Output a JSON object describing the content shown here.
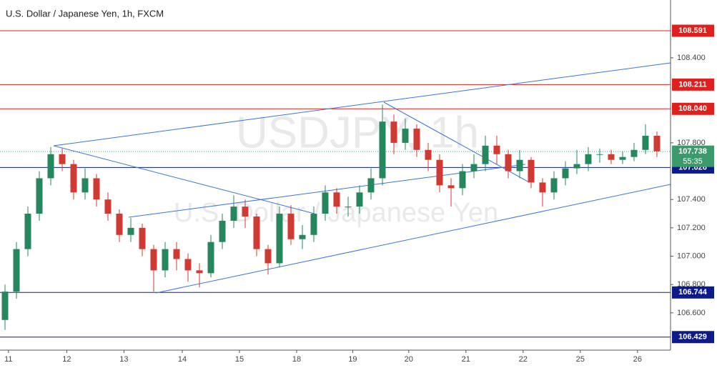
{
  "chart_data": {
    "type": "candlestick",
    "title": "U.S. Dollar / Japanese Yen, 1h, FXCM",
    "watermark": [
      "USDJPY, 1h",
      "U.S. Dollar / Japanese Yen"
    ],
    "open": [
      106.55,
      106.75,
      107.05,
      107.3,
      107.55,
      107.72,
      107.65,
      107.45,
      107.55,
      107.4,
      107.3,
      107.15,
      107.2,
      107.05,
      106.9,
      107.05,
      106.98,
      106.9,
      106.88,
      107.1,
      107.25,
      107.35,
      107.28,
      107.05,
      106.95,
      107.3,
      107.12,
      107.15,
      107.3,
      107.45,
      107.35,
      107.35,
      107.45,
      107.55,
      107.95,
      107.8,
      107.9,
      107.75,
      107.68,
      107.5,
      107.48,
      107.6,
      107.65,
      107.78,
      107.72,
      107.6,
      107.68,
      107.52,
      107.45,
      107.55,
      107.62,
      107.65,
      107.72,
      107.72,
      107.68,
      107.7,
      107.75,
      107.85
    ],
    "high": [
      106.8,
      107.1,
      107.35,
      107.6,
      107.77,
      107.76,
      107.68,
      107.62,
      107.58,
      107.45,
      107.33,
      107.27,
      107.23,
      107.08,
      107.1,
      107.1,
      107.02,
      106.95,
      107.15,
      107.3,
      107.43,
      107.4,
      107.3,
      107.08,
      107.35,
      107.36,
      107.22,
      107.35,
      107.5,
      107.48,
      107.42,
      107.5,
      107.62,
      108.07,
      108.0,
      107.97,
      107.93,
      107.8,
      107.72,
      107.55,
      107.65,
      107.72,
      107.85,
      107.85,
      107.75,
      107.75,
      107.7,
      107.55,
      107.6,
      107.67,
      107.75,
      107.77,
      107.76,
      107.75,
      107.74,
      107.8,
      107.93,
      107.88
    ],
    "low": [
      106.48,
      106.7,
      107.0,
      107.25,
      107.5,
      107.6,
      107.4,
      107.4,
      107.35,
      107.25,
      107.1,
      107.1,
      107.0,
      106.75,
      106.85,
      106.9,
      106.82,
      106.78,
      106.85,
      107.05,
      107.2,
      107.2,
      107.0,
      106.87,
      106.92,
      107.08,
      107.05,
      107.1,
      107.25,
      107.3,
      107.28,
      107.3,
      107.4,
      107.5,
      107.72,
      107.75,
      107.7,
      107.6,
      107.45,
      107.35,
      107.43,
      107.55,
      107.6,
      107.65,
      107.55,
      107.55,
      107.48,
      107.35,
      107.4,
      107.5,
      107.58,
      107.6,
      107.66,
      107.65,
      107.65,
      107.67,
      107.72,
      107.7
    ],
    "close": [
      106.75,
      107.05,
      107.3,
      107.55,
      107.72,
      107.65,
      107.45,
      107.55,
      107.4,
      107.3,
      107.15,
      107.2,
      107.05,
      106.9,
      107.05,
      106.98,
      106.9,
      106.88,
      107.1,
      107.25,
      107.35,
      107.28,
      107.05,
      106.95,
      107.3,
      107.12,
      107.15,
      107.3,
      107.45,
      107.35,
      107.35,
      107.45,
      107.55,
      107.95,
      107.8,
      107.9,
      107.75,
      107.68,
      107.5,
      107.48,
      107.6,
      107.65,
      107.78,
      107.72,
      107.6,
      107.68,
      107.52,
      107.45,
      107.55,
      107.62,
      107.65,
      107.72,
      107.72,
      107.68,
      107.7,
      107.75,
      107.85,
      107.74
    ],
    "up_color": "#26875f",
    "down_color": "#d03a32",
    "xlim": [
      -0.25,
      58.19
    ],
    "xticks": [
      {
        "value": 0.3,
        "label": "11"
      },
      {
        "value": 5.4,
        "label": "12"
      },
      {
        "value": 10.4,
        "label": "13"
      },
      {
        "value": 15.5,
        "label": "14"
      },
      {
        "value": 20.5,
        "label": "15"
      },
      {
        "value": 25.5,
        "label": "18"
      },
      {
        "value": 30.4,
        "label": "19"
      },
      {
        "value": 35.3,
        "label": "20"
      },
      {
        "value": 40.3,
        "label": "21"
      },
      {
        "value": 45.3,
        "label": "22"
      },
      {
        "value": 50.3,
        "label": "25"
      },
      {
        "value": 55.3,
        "label": "26"
      }
    ],
    "ylim": [
      106.337,
      108.808
    ],
    "yticks": [
      {
        "value": 106.6,
        "label": "106.600"
      },
      {
        "value": 106.8,
        "label": "106.800"
      },
      {
        "value": 107,
        "label": "107.000"
      },
      {
        "value": 107.2,
        "label": "107.200"
      },
      {
        "value": 107.4,
        "label": "107.400"
      },
      {
        "value": 107.8,
        "label": "107.800"
      },
      {
        "value": 108.4,
        "label": "108.400"
      }
    ],
    "levels": [
      {
        "value": 108.591,
        "label": "108.591",
        "color": "#e0201c"
      },
      {
        "value": 108.211,
        "label": "108.211",
        "color": "#e0201c"
      },
      {
        "value": 108.04,
        "label": "108.040",
        "color": "#e0201c"
      },
      {
        "value": 107.626,
        "label": "107.626",
        "color": "#0c1a8a"
      },
      {
        "value": 106.744,
        "label": "106.744",
        "color": "#0c1a8a"
      },
      {
        "value": 106.429,
        "label": "106.429",
        "color": "#0c1a8a"
      }
    ],
    "last_price": {
      "value": 107.738,
      "label": "107.738",
      "countdown": "55:35",
      "color": "#3a9a6c"
    }
  }
}
